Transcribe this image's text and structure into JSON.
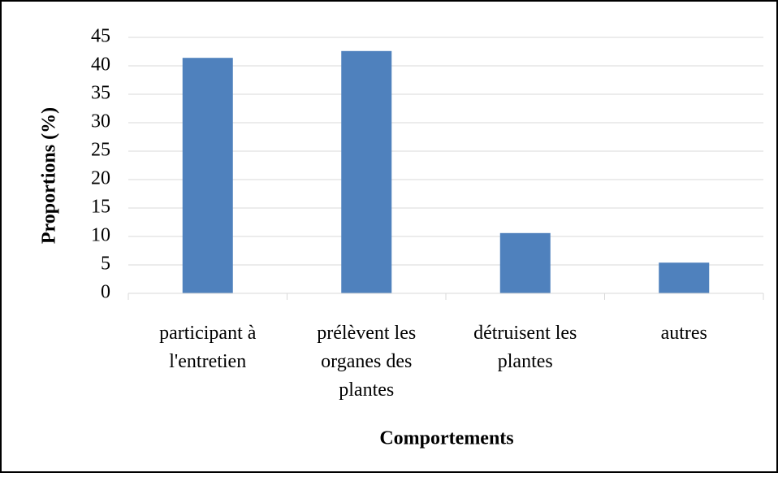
{
  "chart_data": {
    "type": "bar",
    "y_label": "Proportions (%)",
    "x_label": "Comportements",
    "categories": [
      "participant à l'entretien",
      "prélèvent les organes des plantes",
      "détruisent les plantes",
      "autres"
    ],
    "values": [
      41.4,
      42.6,
      10.6,
      5.4
    ],
    "color": "#4f81bd",
    "ylim": [
      0,
      45
    ],
    "yticks": [
      0,
      5,
      10,
      15,
      20,
      25,
      30,
      35,
      40,
      45
    ],
    "grid": true
  }
}
